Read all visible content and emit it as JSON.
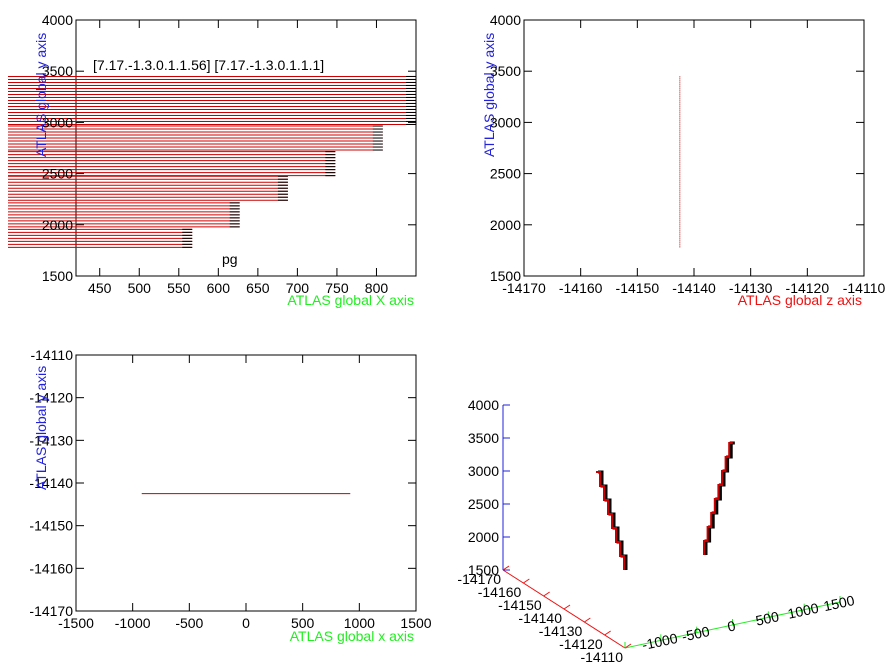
{
  "colors": {
    "x_axis_label": "#22ee22",
    "y_axis_label": "#2222dd",
    "z_axis_label": "#ee1111",
    "track": "#cc0000",
    "dark": "#000000",
    "frame": "#000000"
  },
  "chart_data": [
    {
      "type": "bar",
      "id": "xy-view",
      "title": "",
      "annotation": "[7.17.-1.3.0.1.1.56] [7.17.-1.3.0.1.1.1]",
      "inner_label": "pg",
      "xlabel": "ATLAS global X axis",
      "ylabel": "ATLAS global y axis",
      "xlim": [
        420,
        850
      ],
      "ylim": [
        1500,
        4000
      ],
      "xticks": [
        450,
        500,
        550,
        600,
        650,
        700,
        750,
        800
      ],
      "yticks": [
        1500,
        2000,
        2500,
        3000,
        3500,
        4000
      ],
      "grid": false,
      "stair_steps": [
        {
          "y_from": 1780,
          "y_to": 1980,
          "x_end": 567
        },
        {
          "y_from": 1980,
          "y_to": 2240,
          "x_end": 627
        },
        {
          "y_from": 2240,
          "y_to": 2480,
          "x_end": 688
        },
        {
          "y_from": 2480,
          "y_to": 2730,
          "x_end": 748
        },
        {
          "y_from": 2730,
          "y_to": 2980,
          "x_end": 808
        },
        {
          "y_from": 2980,
          "y_to": 3450,
          "x_end": 850
        }
      ]
    },
    {
      "type": "line",
      "id": "zy-view",
      "title": "",
      "xlabel": "ATLAS global z axis",
      "ylabel": "ATLAS global y axis",
      "xlim": [
        -14170,
        -14110
      ],
      "ylim": [
        1500,
        4000
      ],
      "xticks": [
        -14170,
        -14160,
        -14150,
        -14140,
        -14130,
        -14120,
        -14110
      ],
      "yticks": [
        1500,
        2000,
        2500,
        3000,
        3500,
        4000
      ],
      "grid": false,
      "series": [
        {
          "x": [
            -14142.5,
            -14142.5
          ],
          "y": [
            1780,
            3450
          ]
        }
      ]
    },
    {
      "type": "line",
      "id": "xz-view",
      "title": "",
      "xlabel": "ATLAS global x axis",
      "ylabel": "ATLAS global y axis",
      "xlim": [
        -1500,
        1500
      ],
      "ylim": [
        -14170,
        -14110
      ],
      "xticks": [
        -1500,
        -1000,
        -500,
        0,
        500,
        1000,
        1500
      ],
      "yticks": [
        -14170,
        -14160,
        -14150,
        -14140,
        -14130,
        -14120,
        -14110
      ],
      "grid": false,
      "series": [
        {
          "x": [
            -920,
            920
          ],
          "y": [
            -14142.5,
            -14142.5
          ]
        }
      ]
    },
    {
      "type": "scatter",
      "id": "3d-view",
      "title": "",
      "y_ticks": [
        1500,
        2000,
        2500,
        3000,
        3500,
        4000
      ],
      "z_ticks": [
        -14170,
        -14160,
        -14150,
        -14140,
        -14130,
        -14120,
        -14110
      ],
      "x_ticks": [
        -1500,
        -1000,
        -500,
        0,
        500,
        1000,
        1500
      ],
      "x_tick_labels": [
        "",
        "-1000",
        "-500",
        "0",
        "500",
        "1000",
        "1500"
      ],
      "z_tick_labels": [
        "-14170",
        "-14160",
        "-14150",
        "-14140",
        "-14130",
        "-14120",
        "-14110"
      ]
    }
  ]
}
